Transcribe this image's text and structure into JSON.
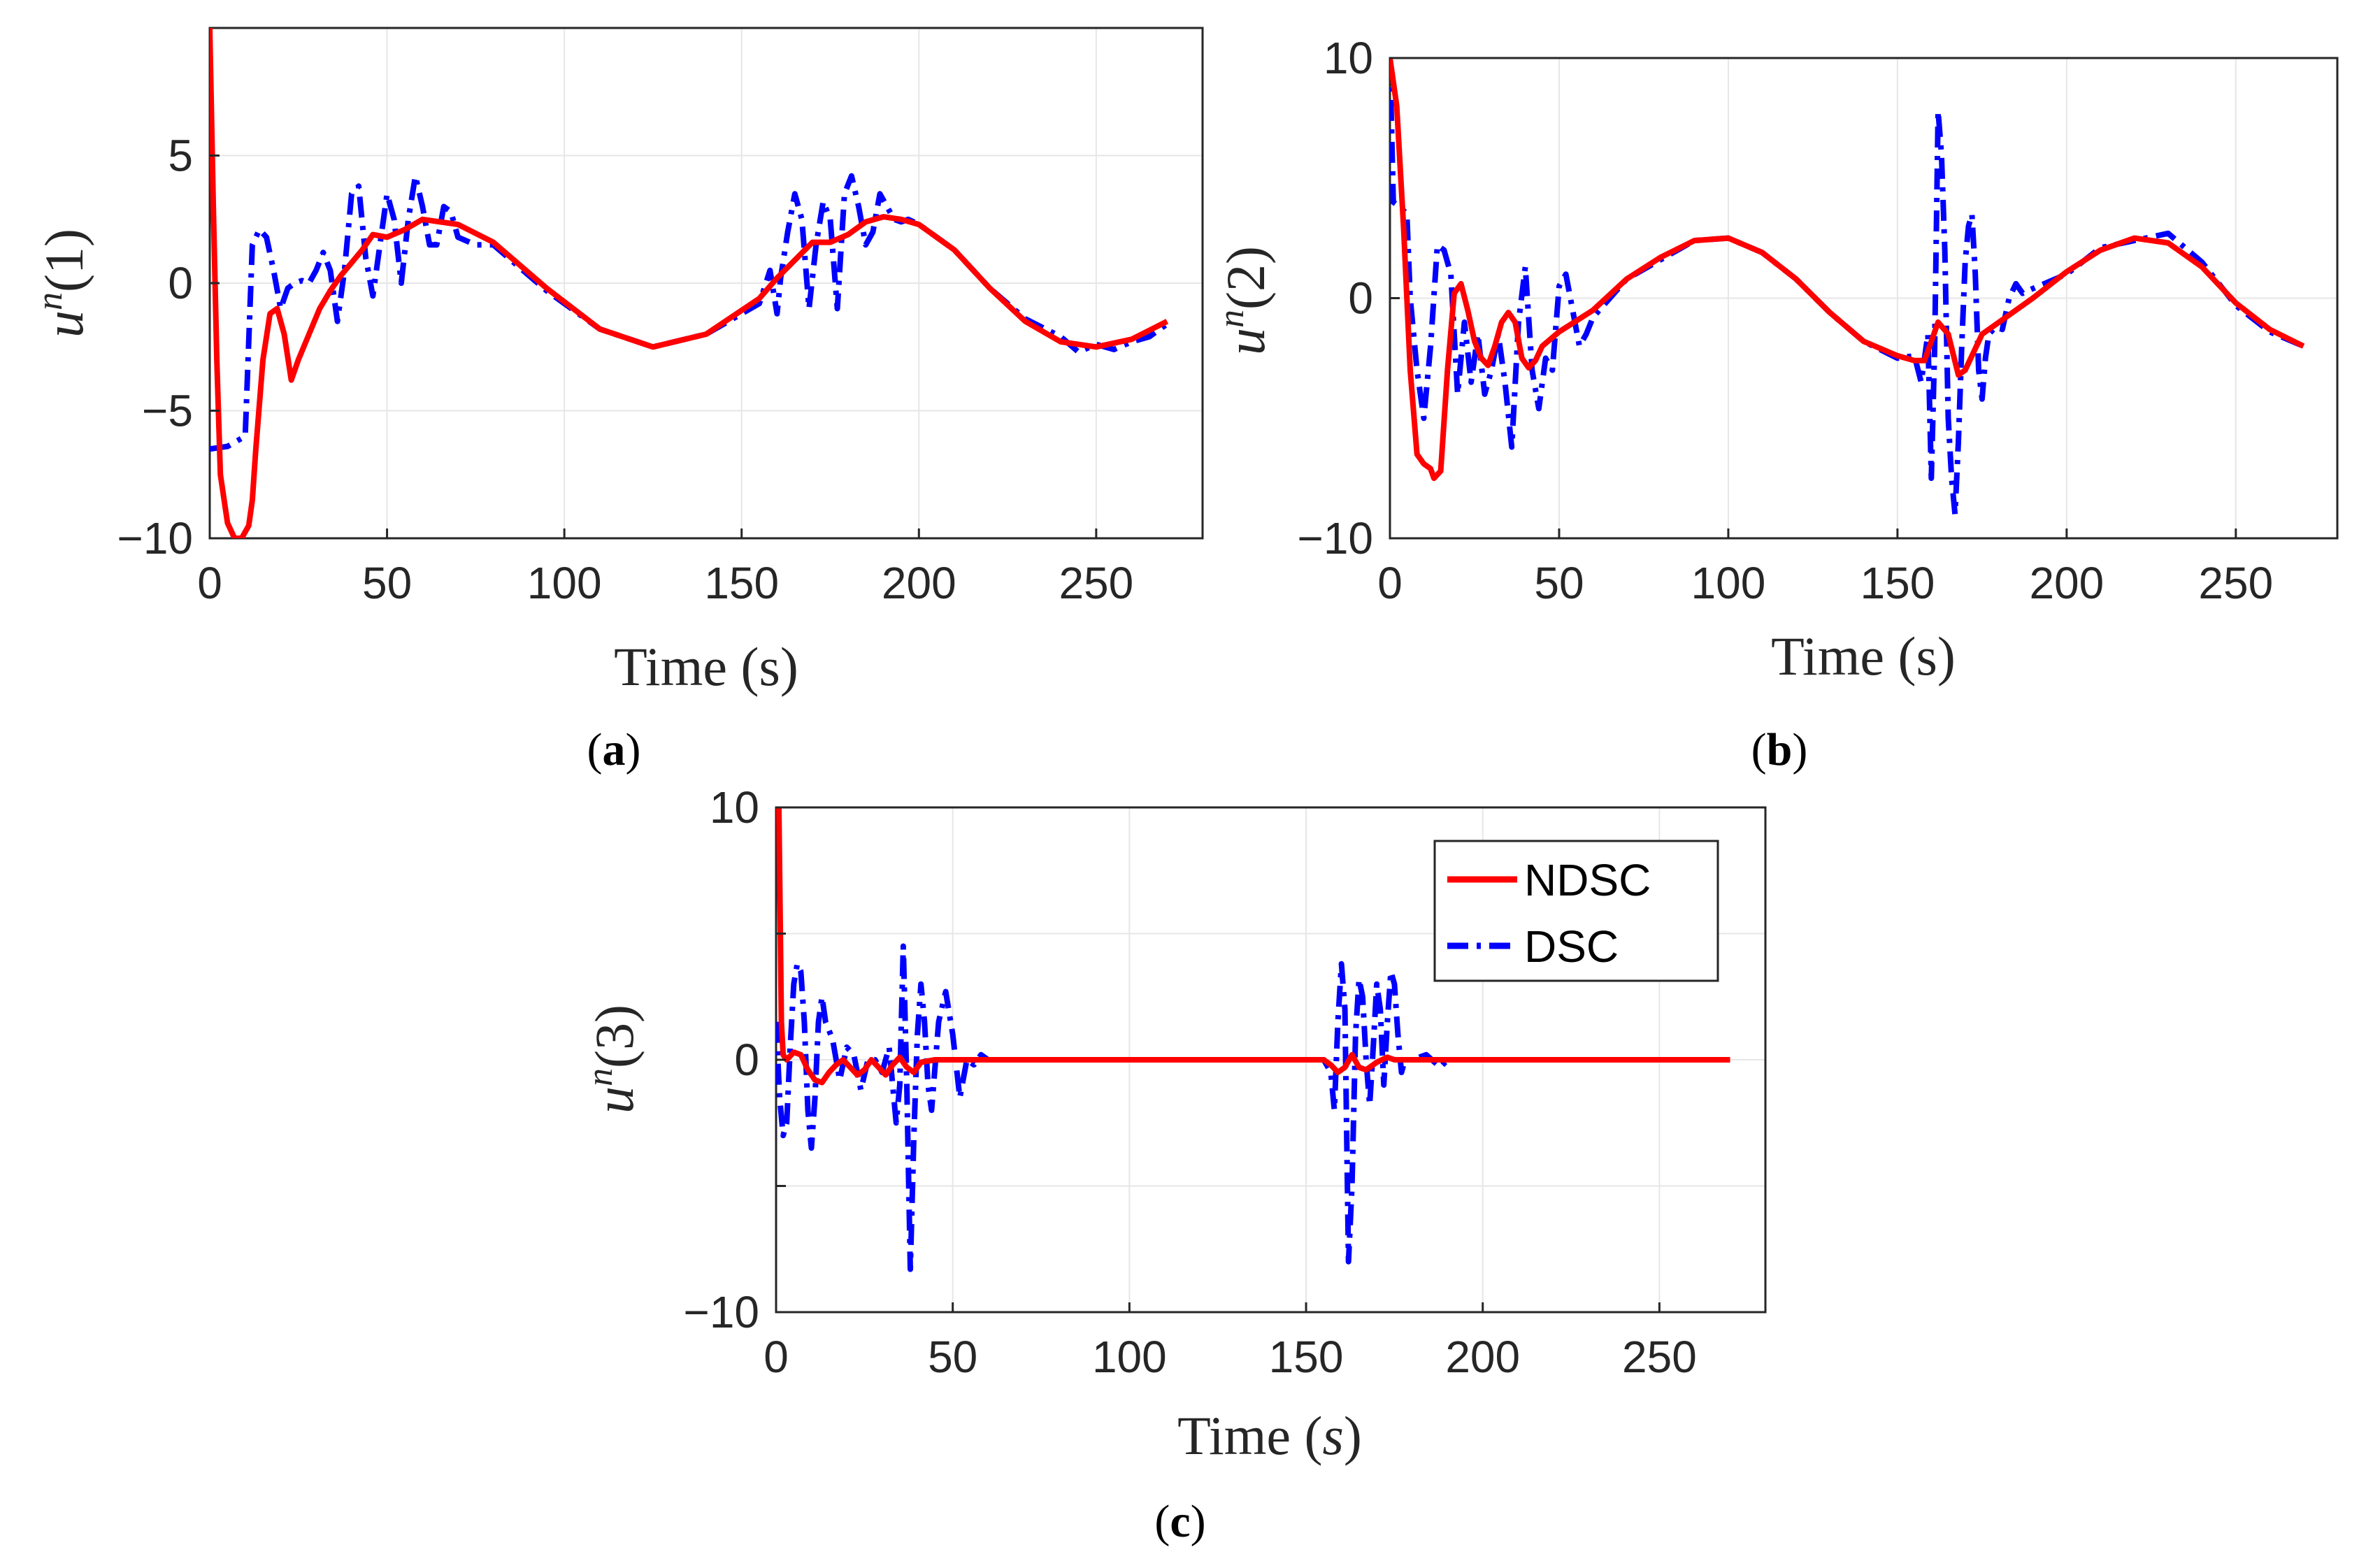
{
  "colors": {
    "ndsc": "#ff0000",
    "dsc": "#0000ff",
    "grid": "#e6e6e6",
    "axis": "#262626"
  },
  "legend": {
    "entries": [
      "NDSC",
      "DSC"
    ],
    "placement": "top-right of panel (c)"
  },
  "chart_data": [
    {
      "type": "line",
      "panel": "a",
      "caption_letter": "a",
      "xlabel": "Time (s)",
      "ylabel_base": "u",
      "ylabel_sup": "n",
      "ylabel_arg": "(1)",
      "xlim": [
        0,
        280
      ],
      "ylim": [
        -10,
        10
      ],
      "xticks": [
        0,
        50,
        100,
        150,
        200,
        250
      ],
      "yticks": [
        -10,
        -5,
        0,
        5
      ],
      "xtick_labels": [
        "0",
        "50",
        "100",
        "150",
        "200",
        "250"
      ],
      "ytick_labels": [
        "−10",
        "−5",
        "0",
        "5"
      ],
      "grid": true,
      "series": [
        {
          "name": "NDSC",
          "x": [
            0,
            1,
            2,
            3,
            5,
            7,
            9,
            11,
            12,
            13,
            15,
            17,
            19,
            21,
            23,
            25,
            28,
            31,
            34,
            37,
            40,
            43,
            46,
            50,
            55,
            60,
            70,
            80,
            95,
            110,
            125,
            140,
            155,
            160,
            165,
            170,
            175,
            180,
            185,
            190,
            195,
            200,
            210,
            220,
            230,
            240,
            250,
            260,
            270
          ],
          "y": [
            10,
            3,
            -3,
            -7.5,
            -9.4,
            -10,
            -10,
            -9.5,
            -8.5,
            -6.5,
            -3,
            -1.2,
            -1,
            -2,
            -3.8,
            -3,
            -2,
            -1,
            -0.3,
            0.3,
            0.8,
            1.3,
            1.9,
            1.8,
            2.1,
            2.5,
            2.3,
            1.6,
            -0.2,
            -1.8,
            -2.5,
            -2,
            -0.6,
            0.2,
            0.9,
            1.6,
            1.6,
            1.9,
            2.4,
            2.6,
            2.5,
            2.3,
            1.3,
            -0.2,
            -1.5,
            -2.3,
            -2.5,
            -2.2,
            -1.5
          ]
        },
        {
          "name": "DSC",
          "x": [
            0,
            5,
            10,
            12,
            14,
            16,
            18,
            20,
            22,
            24,
            26,
            28,
            30,
            32,
            34,
            36,
            38,
            40,
            42,
            44,
            46,
            48,
            50,
            52,
            54,
            56,
            58,
            60,
            62,
            64,
            66,
            68,
            70,
            75,
            80,
            95,
            110,
            125,
            140,
            155,
            158,
            160,
            161,
            163,
            165,
            167,
            169,
            171,
            173,
            175,
            177,
            179,
            181,
            183,
            185,
            187,
            189,
            191,
            193,
            195,
            197,
            200,
            210,
            220,
            230,
            240,
            245,
            250,
            255,
            260,
            265,
            270
          ],
          "y": [
            -6.5,
            -6.4,
            -6,
            1.5,
            2.1,
            1.8,
            0.5,
            -1,
            -0.2,
            0,
            0.1,
            0,
            0.5,
            1.2,
            0.5,
            -1.5,
            0.5,
            3.5,
            3.8,
            1,
            -0.5,
            1.5,
            3.5,
            2.5,
            0,
            2.5,
            4.2,
            3,
            1.5,
            1.5,
            3,
            2.8,
            1.8,
            1.5,
            1.5,
            -0.3,
            -1.8,
            -2.5,
            -2,
            -0.8,
            0.5,
            -1.2,
            0.2,
            2,
            3.5,
            2.5,
            -1,
            1.5,
            3.2,
            2.5,
            -1,
            3.5,
            4.2,
            3,
            1.5,
            2,
            3.5,
            3,
            2.5,
            2.4,
            2.5,
            2.3,
            1.3,
            -0.2,
            -1.4,
            -2.1,
            -2.7,
            -2.4,
            -2.6,
            -2.3,
            -2.1,
            -1.6
          ]
        }
      ]
    },
    {
      "type": "line",
      "panel": "b",
      "caption_letter": "b",
      "xlabel": "Time (s)",
      "ylabel_base": "u",
      "ylabel_sup": "n",
      "ylabel_arg": "(2)",
      "xlim": [
        0,
        280
      ],
      "ylim": [
        -10,
        10
      ],
      "xticks": [
        0,
        50,
        100,
        150,
        200,
        250
      ],
      "yticks": [
        -10,
        0,
        10
      ],
      "xtick_labels": [
        "0",
        "50",
        "100",
        "150",
        "200",
        "250"
      ],
      "ytick_labels": [
        "−10",
        "0",
        "10"
      ],
      "grid": true,
      "series": [
        {
          "name": "NDSC",
          "x": [
            0,
            2,
            4,
            6,
            8,
            10,
            12,
            13,
            15,
            17,
            19,
            21,
            23,
            25,
            27,
            29,
            31,
            33,
            35,
            37,
            39,
            41,
            43,
            45,
            50,
            60,
            70,
            80,
            90,
            100,
            110,
            120,
            130,
            140,
            150,
            155,
            158,
            160,
            162,
            165,
            168,
            170,
            172,
            175,
            180,
            190,
            200,
            210,
            220,
            230,
            240,
            250,
            260,
            270
          ],
          "y": [
            10,
            8,
            3,
            -3,
            -6.5,
            -6.9,
            -7.1,
            -7.5,
            -7.2,
            -3,
            0.2,
            0.6,
            -0.5,
            -1.8,
            -2.5,
            -2.8,
            -2,
            -1,
            -0.6,
            -1,
            -2.5,
            -2.9,
            -2.6,
            -2,
            -1.4,
            -0.5,
            0.8,
            1.7,
            2.4,
            2.5,
            1.9,
            0.8,
            -0.6,
            -1.8,
            -2.4,
            -2.6,
            -2.6,
            -1.8,
            -1,
            -1.5,
            -3.2,
            -3,
            -2.4,
            -1.5,
            -1,
            0,
            1.1,
            2,
            2.5,
            2.3,
            1.3,
            -0.2,
            -1.3,
            -2
          ]
        },
        {
          "name": "DSC",
          "x": [
            0,
            1,
            3,
            5,
            6,
            8,
            10,
            12,
            14,
            16,
            18,
            20,
            22,
            24,
            26,
            28,
            30,
            32,
            34,
            36,
            38,
            40,
            42,
            44,
            46,
            48,
            50,
            52,
            54,
            56,
            58,
            60,
            70,
            80,
            90,
            100,
            110,
            120,
            130,
            140,
            150,
            155,
            157,
            158,
            159,
            160,
            161,
            162,
            163,
            164,
            165,
            166,
            167,
            168,
            169,
            170,
            171,
            172,
            173,
            174,
            175,
            176,
            177,
            179,
            181,
            183,
            185,
            187,
            190,
            200,
            210,
            220,
            230,
            240,
            250,
            260,
            270
          ],
          "y": [
            10,
            4,
            3.8,
            3.5,
            0,
            -3,
            -5,
            -2,
            2.2,
            2,
            1,
            -4,
            -1,
            -3.5,
            -1.5,
            -4,
            -3,
            -1.5,
            -3.5,
            -6.2,
            -1,
            1.3,
            -3,
            -4.6,
            -2.5,
            -3,
            0.5,
            1,
            -0.5,
            -2,
            -1.5,
            -0.8,
            0.8,
            1.6,
            2.4,
            2.5,
            1.9,
            0.8,
            -0.6,
            -1.8,
            -2.5,
            -2.4,
            -3.5,
            -2.5,
            -1.5,
            -7.5,
            -2,
            7.8,
            6,
            2,
            -5,
            -7.5,
            -9,
            -6,
            -2,
            1.5,
            3,
            3.5,
            1,
            -3,
            -4.2,
            -2.5,
            -1.5,
            -1.2,
            -1.3,
            0,
            0.6,
            0.2,
            0.4,
            1,
            2.1,
            2.4,
            2.7,
            1.5,
            -0.3,
            -1.4,
            -2
          ]
        }
      ]
    },
    {
      "type": "line",
      "panel": "c",
      "caption_letter": "c",
      "xlabel_prefix": "Time (",
      "xlabel_var": "s",
      "xlabel_suffix": ")",
      "ylabel_base": "u",
      "ylabel_sup": "n",
      "ylabel_arg": "(3)",
      "xlim": [
        0,
        280
      ],
      "ylim": [
        -10,
        10
      ],
      "xticks": [
        0,
        50,
        100,
        150,
        200,
        250
      ],
      "yticks": [
        -10,
        -5,
        0,
        5,
        10
      ],
      "xtick_labels": [
        "0",
        "50",
        "100",
        "150",
        "200",
        "250"
      ],
      "ytick_labels": [
        "−10",
        "",
        "0",
        "",
        "10"
      ],
      "grid": true,
      "series": [
        {
          "name": "NDSC",
          "x": [
            0,
            0.8,
            1.5,
            2,
            3,
            5,
            7,
            9,
            11,
            13,
            15,
            17,
            19,
            21,
            23,
            25,
            27,
            29,
            31,
            33,
            35,
            37,
            39,
            41,
            45,
            50,
            60,
            80,
            100,
            120,
            140,
            150,
            155,
            157,
            159,
            161,
            163,
            165,
            167,
            170,
            173,
            175,
            180,
            200,
            230,
            250,
            270
          ],
          "y": [
            10,
            10,
            1.5,
            0.2,
            0,
            0.3,
            0.2,
            -0.4,
            -0.8,
            -0.9,
            -0.5,
            -0.2,
            0,
            -0.3,
            -0.6,
            -0.4,
            0,
            -0.3,
            -0.6,
            -0.2,
            0.1,
            -0.3,
            -0.5,
            -0.1,
            0,
            0,
            0,
            0,
            0,
            0,
            0,
            0,
            0,
            -0.2,
            -0.5,
            -0.3,
            0.2,
            -0.3,
            -0.4,
            -0.1,
            0.1,
            0,
            0,
            0,
            0,
            0,
            0
          ]
        },
        {
          "name": "DSC",
          "x": [
            0,
            1,
            2,
            3,
            4,
            5,
            6,
            7,
            8,
            9,
            10,
            11,
            12,
            13,
            14,
            16,
            18,
            20,
            22,
            24,
            26,
            28,
            30,
            32,
            34,
            35,
            36,
            37,
            38,
            39,
            40,
            41,
            42,
            43,
            44,
            46,
            48,
            50,
            52,
            54,
            56,
            58,
            60,
            70,
            100,
            130,
            150,
            155,
            157,
            158,
            159,
            160,
            161,
            162,
            163,
            164,
            165,
            166,
            167,
            168,
            169,
            170,
            171,
            172,
            173,
            174,
            175,
            176,
            177,
            178,
            180,
            184,
            188,
            190,
            200,
            230,
            270
          ],
          "y": [
            1.5,
            -1.5,
            -3,
            -2.5,
            0.5,
            3,
            3.8,
            3.5,
            1.5,
            -2,
            -3.5,
            -1.5,
            1.5,
            2.5,
            1.5,
            0.8,
            -0.8,
            0.5,
            0.2,
            -1.2,
            0,
            0,
            -0.5,
            0.5,
            -2.5,
            -1,
            4.5,
            -1,
            -8.3,
            -3,
            1,
            3,
            1.5,
            -1,
            -2,
            1.5,
            2.7,
            1,
            -1.5,
            0,
            -0.2,
            0.2,
            0,
            0,
            0,
            0,
            0,
            0,
            -0.5,
            -2,
            1.5,
            3.8,
            2,
            -8,
            -5,
            1,
            3.2,
            2.5,
            0,
            -1.8,
            0.5,
            3,
            2,
            -1,
            1.5,
            3.5,
            3,
            1,
            -0.5,
            0,
            0,
            0.2,
            -0.3,
            0,
            0,
            0,
            0
          ]
        }
      ]
    }
  ]
}
